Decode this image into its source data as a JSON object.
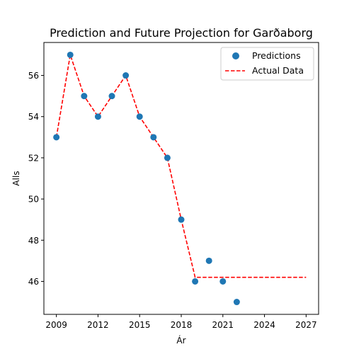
{
  "chart_data": {
    "type": "scatter",
    "title": "Prediction and Future Projection for Garðaborg",
    "xlabel": "Ár",
    "ylabel": "Alls",
    "xlim": [
      2008.1,
      2027.9
    ],
    "ylim": [
      44.4,
      57.6
    ],
    "xticks": [
      2009,
      2012,
      2015,
      2018,
      2021,
      2024,
      2027
    ],
    "yticks": [
      46,
      48,
      50,
      52,
      54,
      56
    ],
    "grid": false,
    "legend_position": "top-right",
    "series": [
      {
        "name": "Predictions",
        "kind": "scatter",
        "color": "#1f77b4",
        "points": [
          {
            "x": 2009,
            "y": 53
          },
          {
            "x": 2010,
            "y": 57
          },
          {
            "x": 2011,
            "y": 55
          },
          {
            "x": 2012,
            "y": 54
          },
          {
            "x": 2013,
            "y": 55
          },
          {
            "x": 2014,
            "y": 56
          },
          {
            "x": 2015,
            "y": 54
          },
          {
            "x": 2016,
            "y": 53
          },
          {
            "x": 2017,
            "y": 52
          },
          {
            "x": 2018,
            "y": 49
          },
          {
            "x": 2019,
            "y": 46
          },
          {
            "x": 2020,
            "y": 47
          },
          {
            "x": 2021,
            "y": 46
          },
          {
            "x": 2022,
            "y": 45
          }
        ]
      },
      {
        "name": "Actual Data",
        "kind": "line",
        "style": "dashed",
        "color": "#ff0000",
        "points": [
          {
            "x": 2009,
            "y": 53
          },
          {
            "x": 2010,
            "y": 57
          },
          {
            "x": 2011,
            "y": 55
          },
          {
            "x": 2012,
            "y": 54
          },
          {
            "x": 2013,
            "y": 55
          },
          {
            "x": 2014,
            "y": 56
          },
          {
            "x": 2015,
            "y": 54
          },
          {
            "x": 2016,
            "y": 53
          },
          {
            "x": 2017,
            "y": 52
          },
          {
            "x": 2018,
            "y": 49
          },
          {
            "x": 2019,
            "y": 46.2
          },
          {
            "x": 2020,
            "y": 46.2
          },
          {
            "x": 2021,
            "y": 46.2
          },
          {
            "x": 2022,
            "y": 46.2
          },
          {
            "x": 2023,
            "y": 46.2
          },
          {
            "x": 2024,
            "y": 46.2
          },
          {
            "x": 2025,
            "y": 46.2
          },
          {
            "x": 2026,
            "y": 46.2
          },
          {
            "x": 2027,
            "y": 46.2
          }
        ]
      }
    ]
  }
}
